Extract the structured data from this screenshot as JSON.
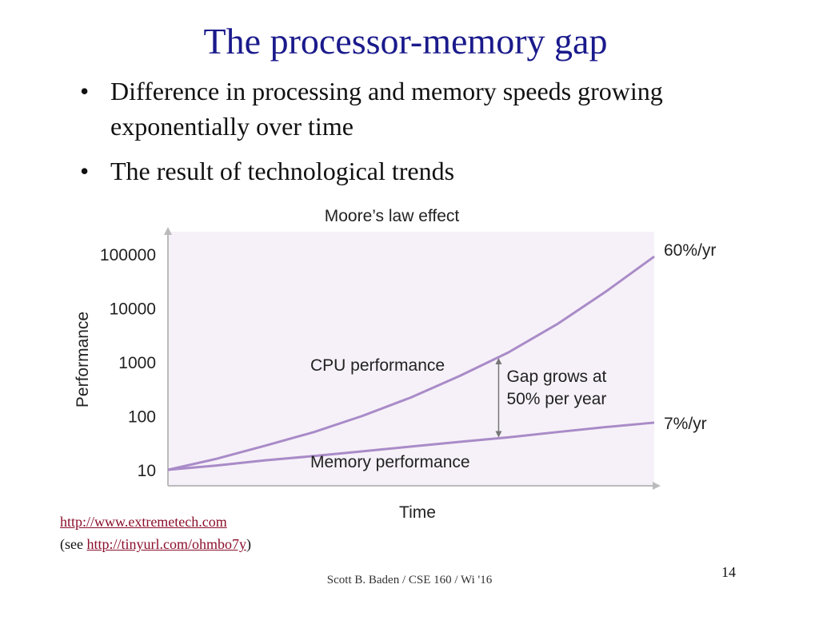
{
  "slide": {
    "title": "The processor-memory gap",
    "bullets": [
      "Difference in processing and memory speeds growing exponentially over time",
      "The result of technological trends"
    ],
    "source_link": "http://www.extremetech.com",
    "source_see_prefix": "(see ",
    "source_see_link": "http://tinyurl.com/ohmbo7y",
    "source_see_suffix": ")",
    "footer": "Scott B. Baden / CSE 160 / Wi '16",
    "page_number": "14"
  },
  "chart_data": {
    "type": "line",
    "title": "Moore’s law effect",
    "xlabel": "Time",
    "ylabel": "Performance",
    "yscale": "log",
    "ylim": [
      10,
      100000
    ],
    "yticks": [
      "100000",
      "10000",
      "1000",
      "100",
      "10"
    ],
    "x": [
      0,
      0.1,
      0.2,
      0.3,
      0.4,
      0.5,
      0.6,
      0.7,
      0.8,
      0.9,
      1.0
    ],
    "series": [
      {
        "name": "CPU performance",
        "rate_label": "60%/yr",
        "color": "#a98bc8",
        "values": [
          10,
          16,
          28,
          50,
          100,
          220,
          550,
          1500,
          5000,
          20000,
          90000
        ]
      },
      {
        "name": "Memory performance",
        "rate_label": "7%/yr",
        "color": "#a98bc8",
        "values": [
          10,
          12,
          15,
          18,
          22,
          27,
          33,
          40,
          50,
          62,
          75
        ]
      }
    ],
    "annotation": {
      "text_line1": "Gap grows at",
      "text_line2": "50% per year",
      "x": 0.68
    },
    "plot_background": "#f6f1f8",
    "grid": false
  }
}
